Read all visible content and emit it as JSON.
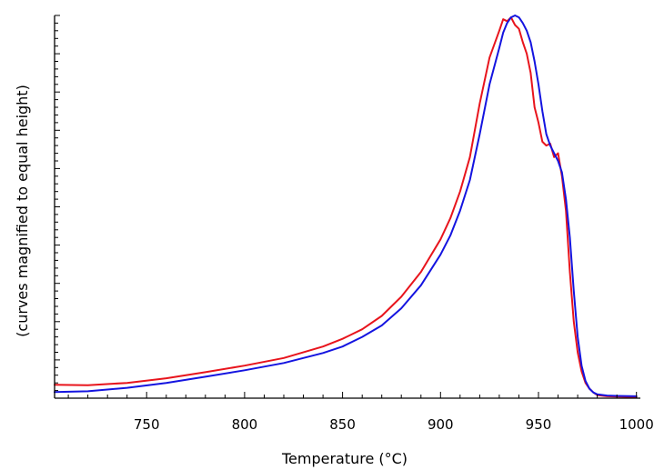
{
  "chart_data": {
    "type": "line",
    "xlabel": "Temperature  (°C)",
    "ylabel": "(curves magnified to equal height)",
    "xlim": [
      703,
      1002
    ],
    "ylim": [
      0,
      1.0
    ],
    "xticks": [
      750,
      800,
      850,
      900,
      950,
      1000
    ],
    "xtick_labels": [
      "750",
      "800",
      "850",
      "900",
      "950",
      "1000"
    ],
    "yticks_minor_count": 50,
    "grid": false,
    "legend": "none",
    "series": [
      {
        "color": "#e8141c",
        "x": [
          703,
          720,
          740,
          760,
          780,
          800,
          820,
          840,
          850,
          860,
          870,
          880,
          890,
          900,
          905,
          910,
          915,
          920,
          925,
          930,
          932,
          934,
          936,
          938,
          940,
          942,
          944,
          946,
          948,
          950,
          952,
          954,
          956,
          958,
          960,
          962,
          964,
          966,
          968,
          970,
          972,
          974,
          976,
          978,
          980,
          985,
          990,
          1000
        ],
        "y": [
          0.035,
          0.034,
          0.04,
          0.052,
          0.068,
          0.085,
          0.105,
          0.135,
          0.155,
          0.18,
          0.215,
          0.265,
          0.33,
          0.415,
          0.47,
          0.54,
          0.63,
          0.77,
          0.89,
          0.96,
          0.99,
          0.985,
          0.995,
          0.975,
          0.965,
          0.93,
          0.9,
          0.85,
          0.76,
          0.72,
          0.67,
          0.66,
          0.665,
          0.63,
          0.64,
          0.58,
          0.49,
          0.33,
          0.2,
          0.12,
          0.07,
          0.04,
          0.025,
          0.015,
          0.008,
          0.005,
          0.004,
          0.003
        ]
      },
      {
        "color": "#1414e0",
        "x": [
          703,
          720,
          740,
          760,
          780,
          800,
          820,
          840,
          850,
          860,
          870,
          880,
          890,
          900,
          905,
          910,
          915,
          920,
          925,
          930,
          932,
          934,
          936,
          938,
          940,
          942,
          944,
          946,
          948,
          950,
          952,
          954,
          956,
          958,
          960,
          962,
          964,
          966,
          968,
          970,
          972,
          974,
          976,
          978,
          980,
          985,
          990,
          1000
        ],
        "y": [
          0.016,
          0.018,
          0.027,
          0.04,
          0.056,
          0.073,
          0.092,
          0.118,
          0.135,
          0.16,
          0.19,
          0.235,
          0.295,
          0.375,
          0.425,
          0.49,
          0.57,
          0.69,
          0.82,
          0.915,
          0.955,
          0.98,
          0.995,
          1.0,
          0.995,
          0.98,
          0.96,
          0.93,
          0.88,
          0.82,
          0.75,
          0.69,
          0.66,
          0.64,
          0.62,
          0.59,
          0.52,
          0.42,
          0.28,
          0.16,
          0.085,
          0.045,
          0.025,
          0.015,
          0.01,
          0.007,
          0.006,
          0.005
        ]
      }
    ]
  }
}
